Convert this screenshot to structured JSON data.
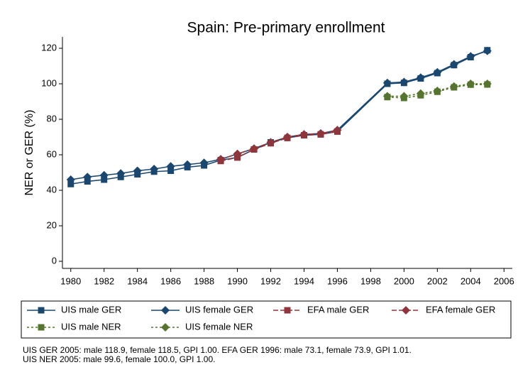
{
  "chart_data": {
    "type": "line",
    "title": "Spain: Pre-primary enrollment",
    "y_label": "NER or GER (%)",
    "xlim": [
      1979.5,
      2006.5
    ],
    "ylim": [
      -4,
      126.4
    ],
    "xticks": [
      1980,
      1982,
      1984,
      1986,
      1988,
      1990,
      1992,
      1994,
      1996,
      1998,
      2000,
      2002,
      2004,
      2006
    ],
    "yticks": [
      0,
      20,
      40,
      60,
      80,
      100,
      120
    ],
    "grid": false,
    "series": [
      {
        "name": "UIS male GER",
        "color": "#1a476f",
        "marker": "square",
        "line_style": "solid",
        "x": [
          1980,
          1981,
          1982,
          1983,
          1984,
          1985,
          1986,
          1987,
          1988,
          1989,
          1990,
          1991,
          1992,
          1993,
          1994,
          1995,
          1996,
          1999,
          2000,
          2001,
          2002,
          2003,
          2004,
          2005
        ],
        "values": [
          43.5,
          45,
          46,
          47.5,
          49,
          50.5,
          51,
          53,
          54,
          57,
          58.5,
          63,
          67,
          69.5,
          71,
          71.5,
          73.1,
          100,
          100.5,
          103,
          106,
          110.5,
          115,
          118.9
        ]
      },
      {
        "name": "UIS female GER",
        "color": "#1a476f",
        "marker": "diamond",
        "line_style": "solid",
        "x": [
          1980,
          1981,
          1982,
          1983,
          1984,
          1985,
          1986,
          1987,
          1988,
          1989,
          1990,
          1991,
          1992,
          1993,
          1994,
          1995,
          1996,
          1999,
          2000,
          2001,
          2002,
          2003,
          2004,
          2005
        ],
        "values": [
          46,
          47.5,
          48.5,
          49.5,
          51,
          52,
          53.5,
          54.5,
          55.5,
          57.5,
          60.5,
          63.5,
          67,
          70,
          71.5,
          72,
          73.9,
          100.5,
          101,
          103.5,
          106.5,
          111,
          115.5,
          118.5
        ]
      },
      {
        "name": "EFA male GER",
        "color": "#90353b",
        "marker": "square",
        "line_style": "dashed",
        "x": [
          1989,
          1990,
          1991,
          1992,
          1993,
          1994,
          1995,
          1996
        ],
        "values": [
          56.5,
          58.5,
          63,
          66.5,
          69.5,
          71,
          71.5,
          73.1
        ]
      },
      {
        "name": "EFA female GER",
        "color": "#90353b",
        "marker": "diamond",
        "line_style": "dashed",
        "x": [
          1989,
          1990,
          1991,
          1992,
          1993,
          1994,
          1995,
          1996
        ],
        "values": [
          57.5,
          60.5,
          63.5,
          67,
          70,
          71.5,
          72,
          73.9
        ]
      },
      {
        "name": "UIS male NER",
        "color": "#55752f",
        "marker": "square",
        "line_style": "dotted",
        "x": [
          1999,
          2000,
          2001,
          2002,
          2003,
          2004,
          2005
        ],
        "values": [
          92.5,
          92,
          93.5,
          95.5,
          98,
          99.5,
          99.6
        ]
      },
      {
        "name": "UIS female NER",
        "color": "#55752f",
        "marker": "diamond",
        "line_style": "dotted",
        "x": [
          1999,
          2000,
          2001,
          2002,
          2003,
          2004,
          2005
        ],
        "values": [
          93,
          93,
          94.5,
          96,
          98.5,
          100,
          100.0
        ]
      }
    ],
    "notes": [
      "UIS GER 2005: male 118.9, female 118.5, GPI 1.00. EFA GER 1996: male 73.1, female 73.9, GPI 1.01.",
      "UIS NER 2005: male 99.6, female 100.0, GPI 1.00."
    ]
  }
}
